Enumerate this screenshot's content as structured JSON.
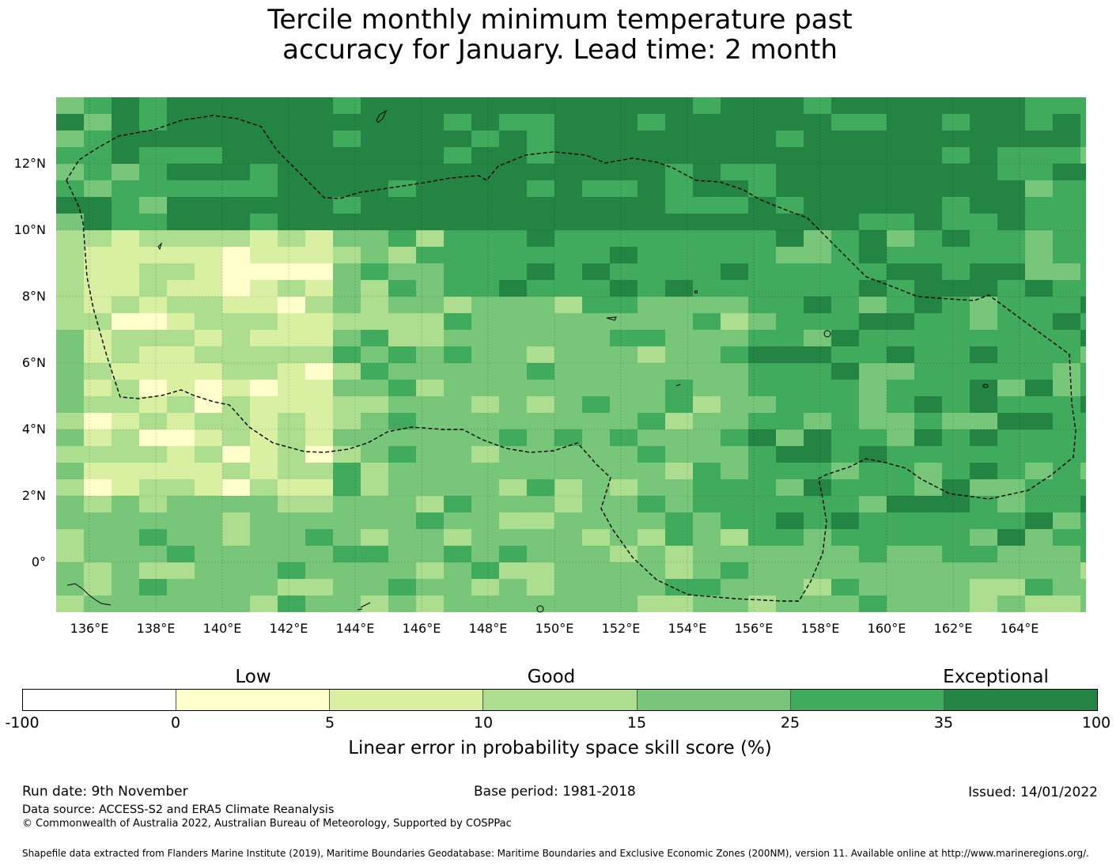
{
  "title": {
    "line1": "Tercile monthly minimum temperature past",
    "line2": "accuracy for January. Lead time: 2 month"
  },
  "map": {
    "x_ticks": [
      "136°E",
      "138°E",
      "140°E",
      "142°E",
      "144°E",
      "146°E",
      "148°E",
      "150°E",
      "152°E",
      "154°E",
      "156°E",
      "158°E",
      "160°E",
      "162°E",
      "164°E"
    ],
    "y_ticks": [
      "12°N",
      "10°N",
      "8°N",
      "6°N",
      "4°N",
      "2°N",
      "0°"
    ],
    "boundary_style": "dashed",
    "land_outline_color": "#000000"
  },
  "legend": {
    "categories": [
      "Low",
      "Good",
      "Exceptional"
    ],
    "bins": [
      {
        "from": -100,
        "to": 0,
        "color": "#ffffff"
      },
      {
        "from": 0,
        "to": 5,
        "color": "#ffffcc"
      },
      {
        "from": 5,
        "to": 10,
        "color": "#d9f0a3"
      },
      {
        "from": 10,
        "to": 15,
        "color": "#addd8e"
      },
      {
        "from": 15,
        "to": 25,
        "color": "#78c679"
      },
      {
        "from": 25,
        "to": 35,
        "color": "#41ab5d"
      },
      {
        "from": 35,
        "to": 100,
        "color": "#238443"
      }
    ],
    "tick_labels": [
      "-100",
      "0",
      "5",
      "10",
      "15",
      "25",
      "35",
      "100"
    ],
    "label": "Linear error in probability space skill score (%)"
  },
  "chart_data": {
    "type": "heatmap",
    "title": "Tercile monthly minimum temperature past accuracy for January. Lead time: 2 month",
    "x_range_deg_e": [
      135,
      166
    ],
    "y_range_deg_n": [
      -1.5,
      14
    ],
    "colorbar_label": "Linear error in probability space skill score (%)",
    "colorbar_bounds": [
      -100,
      0,
      5,
      10,
      15,
      25,
      35,
      100
    ],
    "regions": [
      {
        "area": "north 10-14°N, 139-166°E",
        "score_class": "35 to 100"
      },
      {
        "area": "west 2-9°N, 135-144°E",
        "score_class": "0 to 10"
      },
      {
        "area": "central 0-9°N, 144-156°E",
        "score_class": "15 to 25"
      },
      {
        "area": "east 0-10°N, 156-166°E",
        "score_class": "25 to 35"
      }
    ]
  },
  "footer": {
    "run_date": "Run date: 9th November",
    "base_period": "Base period: 1981-2018",
    "issued": "Issued: 14/01/2022",
    "data_source": "Data source: ACCESS-S2 and ERA5 Climate Reanalysis",
    "copyright": "© Commonwealth of Australia 2022, Australian Bureau of Meteorology, Supported by COSPPac",
    "shapefile": "Shapefile data extracted from Flanders Marine Institute (2019), Maritime Boundaries Geodatabase: Maritime Boundaries and Exclusive Economic Zones (200NM), version 11. Available online at http://www.marineregions.org/."
  }
}
